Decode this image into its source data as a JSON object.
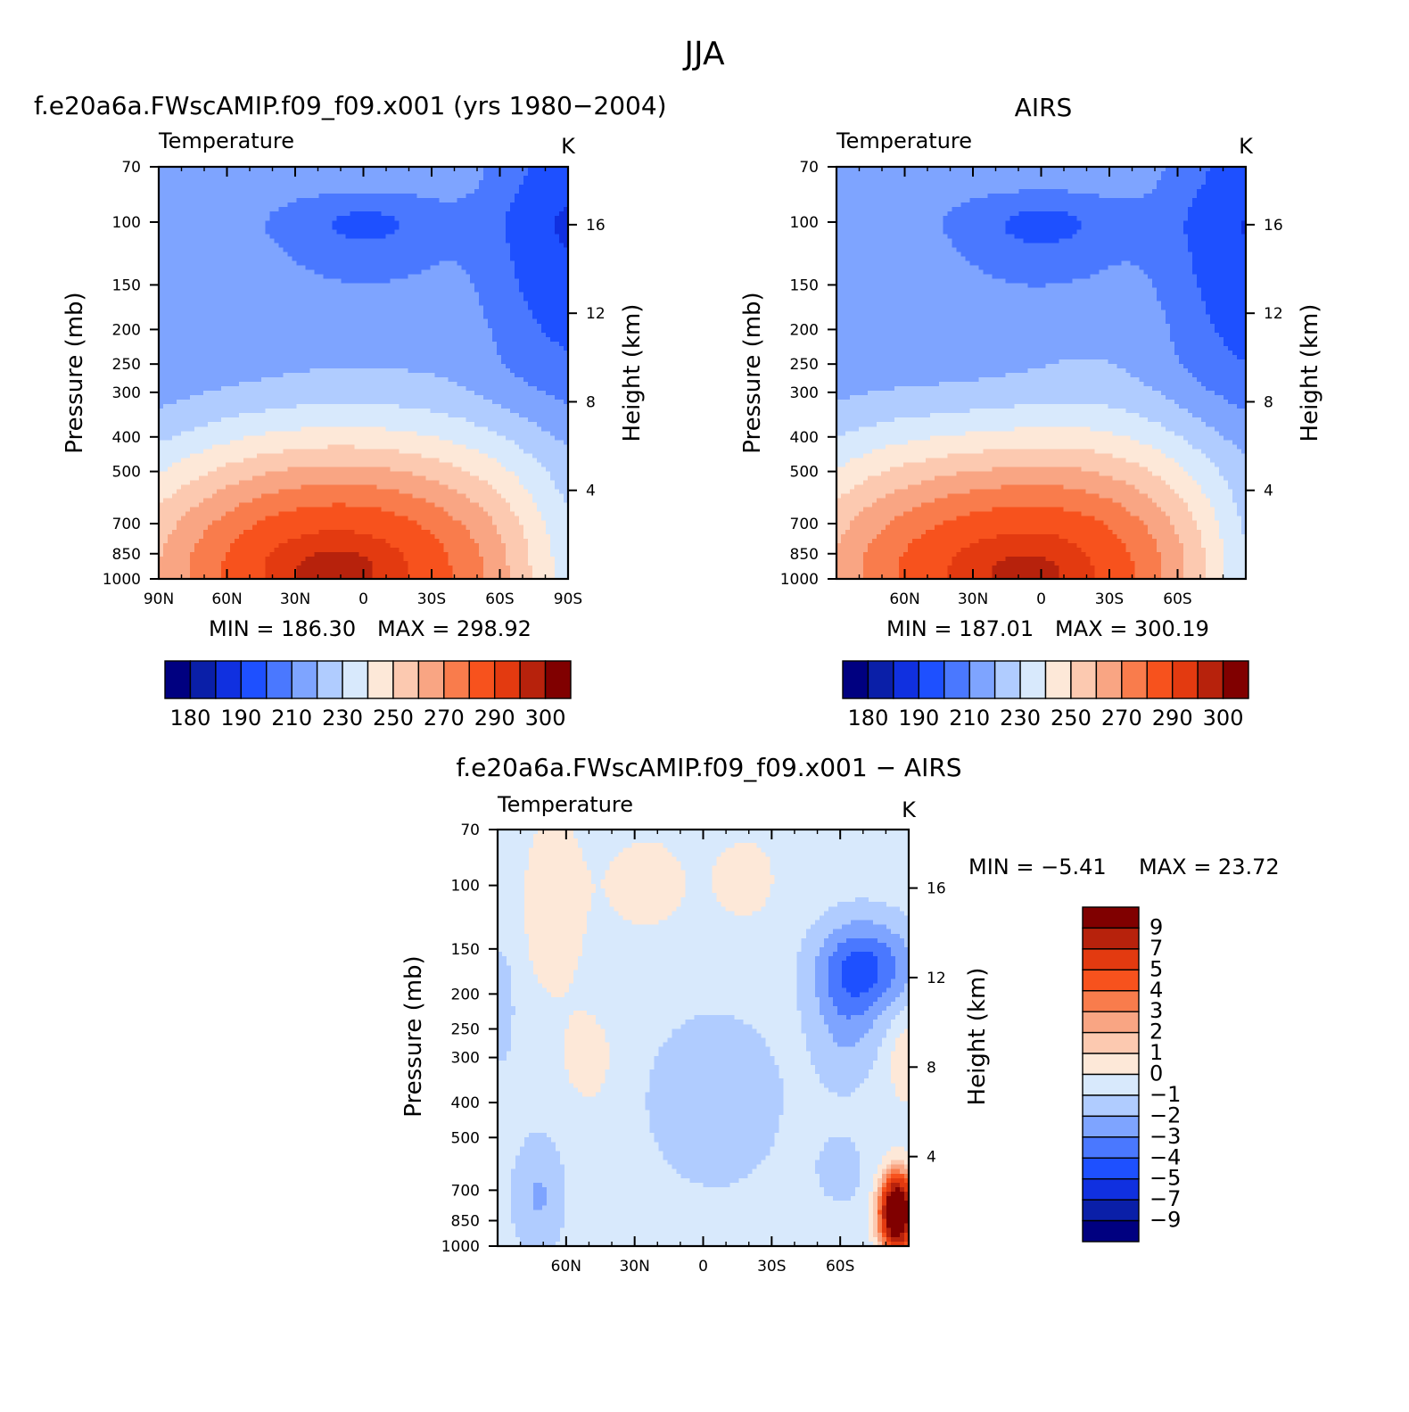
{
  "figure_title": "JJA",
  "chart_data": [
    {
      "id": "model",
      "type": "contour",
      "title": "f.e20a6a.FWscAMIP.f09_f09.x001 (yrs 1980-2004)",
      "variable": "Temperature",
      "units": "K",
      "ylabel": "Pressure (mb)",
      "ylabel_right": "Height (km)",
      "x_ticks": [
        "90N",
        "60N",
        "30N",
        "0",
        "30S",
        "60S",
        "90S"
      ],
      "x_tick_values": [
        -90,
        -60,
        -30,
        0,
        30,
        60,
        90
      ],
      "xlim": [
        -90,
        90
      ],
      "y_ticks": [
        "70",
        "100",
        "150",
        "200",
        "250",
        "300",
        "400",
        "500",
        "700",
        "850",
        "1000"
      ],
      "y_tick_values": [
        70,
        100,
        150,
        200,
        250,
        300,
        400,
        500,
        700,
        850,
        1000
      ],
      "ylim": [
        1000,
        70
      ],
      "right_ticks": [
        "16",
        "12",
        "8",
        "4"
      ],
      "right_tick_values": [
        16,
        12,
        8,
        4
      ],
      "min": 186.3,
      "max": 298.92,
      "min_text": "MIN = 186.30",
      "max_text": "MAX = 298.92",
      "field": "model",
      "colorbar_labels": [
        "180",
        "190",
        "210",
        "230",
        "250",
        "270",
        "290",
        "300"
      ]
    },
    {
      "id": "airs",
      "type": "contour",
      "title": "AIRS",
      "variable": "Temperature",
      "units": "K",
      "ylabel": "Pressure (mb)",
      "ylabel_right": "Height (km)",
      "x_ticks": [
        "60N",
        "30N",
        "0",
        "30S",
        "60S"
      ],
      "x_tick_values": [
        -60,
        -30,
        0,
        30,
        60
      ],
      "xlim": [
        -90,
        90
      ],
      "y_ticks": [
        "70",
        "100",
        "150",
        "200",
        "250",
        "300",
        "400",
        "500",
        "700",
        "850",
        "1000"
      ],
      "y_tick_values": [
        70,
        100,
        150,
        200,
        250,
        300,
        400,
        500,
        700,
        850,
        1000
      ],
      "ylim": [
        1000,
        70
      ],
      "right_ticks": [
        "16",
        "12",
        "8",
        "4"
      ],
      "right_tick_values": [
        16,
        12,
        8,
        4
      ],
      "min": 187.01,
      "max": 300.19,
      "min_text": "MIN = 187.01",
      "max_text": "MAX = 300.19",
      "field": "airs",
      "colorbar_labels": [
        "180",
        "190",
        "210",
        "230",
        "250",
        "270",
        "290",
        "300"
      ]
    },
    {
      "id": "diff",
      "type": "contour",
      "title": "f.e20a6a.FWscAMIP.f09_f09.x001 - AIRS",
      "variable": "Temperature",
      "units": "K",
      "ylabel": "Pressure (mb)",
      "ylabel_right": "Height (km)",
      "x_ticks": [
        "60N",
        "30N",
        "0",
        "30S",
        "60S"
      ],
      "x_tick_values": [
        -60,
        -30,
        0,
        30,
        60
      ],
      "xlim": [
        -90,
        90
      ],
      "y_ticks": [
        "70",
        "100",
        "150",
        "200",
        "250",
        "300",
        "400",
        "500",
        "700",
        "850",
        "1000"
      ],
      "y_tick_values": [
        70,
        100,
        150,
        200,
        250,
        300,
        400,
        500,
        700,
        850,
        1000
      ],
      "ylim": [
        1000,
        70
      ],
      "right_ticks": [
        "16",
        "12",
        "8",
        "4"
      ],
      "right_tick_values": [
        16,
        12,
        8,
        4
      ],
      "min": -5.41,
      "max": 23.72,
      "min_text": "MIN = -5.41",
      "max_text": "MAX = 23.72",
      "field": "diff",
      "colorbar_labels": [
        "9",
        "7",
        "5",
        "4",
        "3",
        "2",
        "1",
        "0",
        "-1",
        "-2",
        "-3",
        "-4",
        "-5",
        "-7",
        "-9"
      ]
    }
  ],
  "temp_levels": [
    180,
    185,
    190,
    200,
    210,
    220,
    230,
    240,
    250,
    260,
    270,
    280,
    290,
    295,
    300
  ],
  "temp_colors": [
    "#000080",
    "#0a1fa8",
    "#1030e0",
    "#1e50ff",
    "#4a78ff",
    "#7ea4ff",
    "#b0ccff",
    "#d8e9fc",
    "#fde8d8",
    "#fcc9b0",
    "#f9a583",
    "#f97c4c",
    "#f7521d",
    "#e33a10",
    "#b7220c",
    "#800000"
  ],
  "diff_levels": [
    -9,
    -7,
    -5,
    -4,
    -3,
    -2,
    -1,
    0,
    1,
    2,
    3,
    4,
    5,
    7,
    9
  ],
  "diff_colors": [
    "#000080",
    "#0a1fa8",
    "#1030e0",
    "#1e50ff",
    "#4a78ff",
    "#7ea4ff",
    "#b0ccff",
    "#d8e9fc",
    "#fde8d8",
    "#fcc9b0",
    "#f9a583",
    "#f97c4c",
    "#f7521d",
    "#e33a10",
    "#b7220c",
    "#800000"
  ]
}
